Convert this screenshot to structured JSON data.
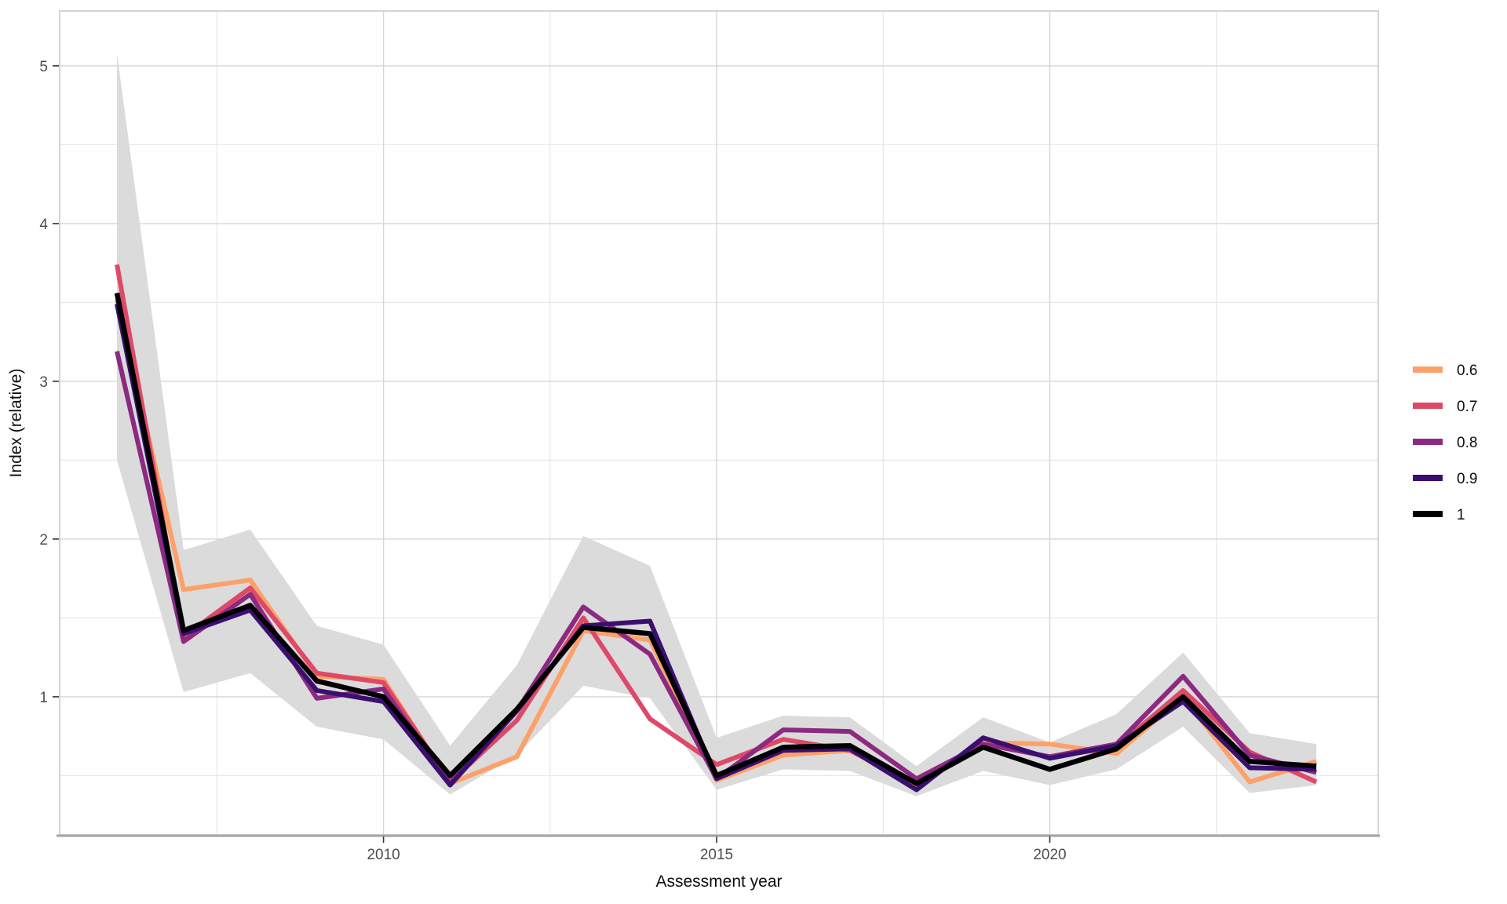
{
  "chart_data": {
    "type": "line",
    "title": "",
    "xlabel": "Assessment year",
    "ylabel": "Index (relative)",
    "x": [
      2006,
      2007,
      2008,
      2009,
      2010,
      2011,
      2012,
      2013,
      2014,
      2015,
      2016,
      2017,
      2018,
      2019,
      2020,
      2021,
      2022,
      2023,
      2024
    ],
    "series": [
      {
        "name": "0.6",
        "color": "#FCA169",
        "values": [
          3.52,
          1.68,
          1.74,
          1.13,
          1.11,
          0.45,
          0.62,
          1.42,
          1.36,
          0.47,
          0.63,
          0.66,
          0.44,
          0.71,
          0.7,
          0.64,
          1.0,
          0.46,
          0.59
        ]
      },
      {
        "name": "0.7",
        "color": "#DE4968",
        "values": [
          3.74,
          1.38,
          1.69,
          1.15,
          1.09,
          0.46,
          0.85,
          1.5,
          0.86,
          0.57,
          0.73,
          0.66,
          0.45,
          0.7,
          0.62,
          0.68,
          1.04,
          0.65,
          0.46
        ]
      },
      {
        "name": "0.8",
        "color": "#8C2981",
        "values": [
          3.19,
          1.35,
          1.65,
          0.99,
          1.05,
          0.45,
          0.91,
          1.57,
          1.27,
          0.48,
          0.79,
          0.78,
          0.48,
          0.7,
          0.62,
          0.7,
          1.13,
          0.63,
          0.52
        ]
      },
      {
        "name": "0.9",
        "color": "#3B0F70",
        "values": [
          3.49,
          1.4,
          1.55,
          1.04,
          0.97,
          0.44,
          0.91,
          1.45,
          1.48,
          0.48,
          0.66,
          0.67,
          0.41,
          0.74,
          0.61,
          0.69,
          0.97,
          0.55,
          0.54
        ]
      },
      {
        "name": "1",
        "color": "#000004",
        "values": [
          3.56,
          1.42,
          1.58,
          1.1,
          1.0,
          0.5,
          0.92,
          1.44,
          1.4,
          0.5,
          0.68,
          0.69,
          0.45,
          0.68,
          0.54,
          0.67,
          1.0,
          0.59,
          0.56
        ]
      }
    ],
    "ribbon": {
      "series_ref": "1",
      "color": "#DBDBDB",
      "lower": [
        2.5,
        1.03,
        1.15,
        0.81,
        0.73,
        0.38,
        0.63,
        1.07,
        0.99,
        0.41,
        0.54,
        0.53,
        0.37,
        0.53,
        0.44,
        0.54,
        0.81,
        0.39,
        0.44
      ],
      "upper": [
        5.08,
        1.93,
        2.06,
        1.45,
        1.33,
        0.69,
        1.2,
        2.02,
        1.83,
        0.74,
        0.88,
        0.87,
        0.56,
        0.87,
        0.71,
        0.89,
        1.28,
        0.77,
        0.7
      ]
    },
    "x_axis": {
      "major_ticks": [
        2010,
        2015,
        2020
      ],
      "major_labels": [
        "2010",
        "2015",
        "2020"
      ],
      "minor_ticks": [
        2007.5,
        2012.5,
        2017.5,
        2022.5,
        2025
      ],
      "domain": [
        2005.14,
        2024.93
      ]
    },
    "y_axis": {
      "major_ticks": [
        1,
        2,
        3,
        4,
        5
      ],
      "major_labels": [
        "1",
        "2",
        "3",
        "4",
        "5"
      ],
      "minor_ticks": [
        0.5,
        1.5,
        2.5,
        3.5,
        4.5
      ],
      "domain": [
        0.124,
        5.348
      ]
    },
    "legend": {
      "position": "right",
      "title": "",
      "entries": [
        "0.6",
        "0.7",
        "0.8",
        "0.9",
        "1"
      ]
    },
    "style_colors": {
      "grid_major": "#d6d6d6",
      "grid_minor": "#e8e8e8",
      "panel_border": "#c6c6c6",
      "axis_line": "#a3a3a3",
      "tick_mark": "#333333",
      "tick_text": "#4d4d4d"
    }
  }
}
